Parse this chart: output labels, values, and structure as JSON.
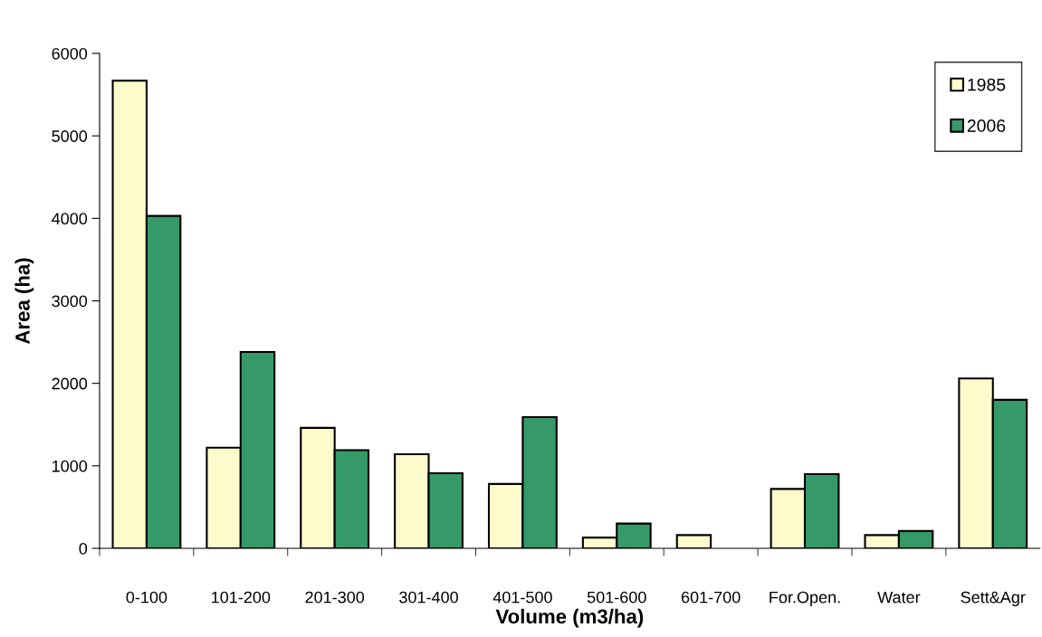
{
  "chart_data": {
    "type": "bar",
    "xlabel": "Volume (m3/ha)",
    "ylabel": "Area (ha)",
    "categories": [
      "0-100",
      "101-200",
      "201-300",
      "301-400",
      "401-500",
      "501-600",
      "601-700",
      "For.Open.",
      "Water",
      "Sett&Agr"
    ],
    "series": [
      {
        "name": "1985",
        "color": "#fdfbcc",
        "values": [
          5670,
          1220,
          1460,
          1140,
          780,
          130,
          160,
          720,
          160,
          2060
        ]
      },
      {
        "name": "2006",
        "color": "#369a68",
        "values": [
          4030,
          2380,
          1190,
          910,
          1590,
          300,
          0,
          900,
          210,
          1800
        ]
      }
    ],
    "ylim": [
      0,
      6000
    ],
    "yticks": [
      0,
      1000,
      2000,
      3000,
      4000,
      5000,
      6000
    ],
    "grid": false,
    "legend": "top right"
  }
}
